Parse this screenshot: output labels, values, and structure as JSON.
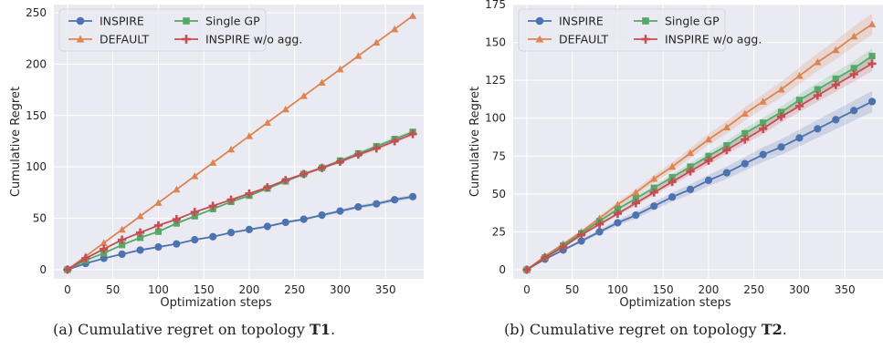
{
  "chart_data": [
    {
      "type": "line",
      "caption_prefix": "(a) Cumulative regret on topology ",
      "caption_bold": "T1",
      "caption_suffix": ".",
      "xlabel": "Optimization steps",
      "ylabel": "Cumulative Regret",
      "xlim": [
        -15,
        392
      ],
      "ylim": [
        -9,
        258
      ],
      "xticks": [
        0,
        50,
        100,
        150,
        200,
        250,
        300,
        350
      ],
      "yticks": [
        0,
        50,
        100,
        150,
        200,
        250
      ],
      "grid": true,
      "legend": "top-left, 2 columns",
      "x": [
        0,
        20,
        40,
        60,
        80,
        100,
        120,
        140,
        160,
        180,
        200,
        220,
        240,
        260,
        280,
        300,
        320,
        340,
        360,
        380
      ],
      "series": [
        {
          "name": "INSPIRE",
          "color": "#4C72B0",
          "marker": "circle",
          "band": 2,
          "values": [
            0,
            6,
            11,
            15,
            19,
            22,
            25,
            29,
            32,
            36,
            39,
            42,
            46,
            49,
            53,
            57,
            61,
            64,
            68,
            71
          ]
        },
        {
          "name": "DEFAULT",
          "color": "#DD8452",
          "marker": "triangle",
          "band": 0,
          "values": [
            0,
            13,
            26,
            39,
            52,
            65,
            78,
            91,
            104,
            117,
            130,
            143,
            156,
            169,
            182,
            195,
            208,
            221,
            234,
            247
          ]
        },
        {
          "name": "Single GP",
          "color": "#55A868",
          "marker": "square",
          "band": 2,
          "values": [
            0,
            9,
            16,
            24,
            31,
            37,
            45,
            52,
            59,
            66,
            72,
            79,
            86,
            93,
            99,
            106,
            113,
            120,
            127,
            134
          ]
        },
        {
          "name": "INSPIRE w/o agg.",
          "color": "#C44E52",
          "marker": "plus",
          "band": 2,
          "values": [
            0,
            11,
            20,
            29,
            36,
            43,
            49,
            56,
            62,
            68,
            74,
            80,
            87,
            93,
            99,
            105,
            112,
            118,
            125,
            132
          ]
        }
      ]
    },
    {
      "type": "line",
      "caption_prefix": "(b) Cumulative regret on topology ",
      "caption_bold": "T2",
      "caption_suffix": ".",
      "xlabel": "Optimization steps",
      "ylabel": "Cumulative Regret",
      "xlim": [
        -15,
        392
      ],
      "ylim": [
        -6,
        175
      ],
      "xticks": [
        0,
        50,
        100,
        150,
        200,
        250,
        300,
        350
      ],
      "yticks": [
        0,
        25,
        50,
        75,
        100,
        125,
        150,
        175
      ],
      "grid": true,
      "legend": "top-left, 2 columns",
      "x": [
        0,
        20,
        40,
        60,
        80,
        100,
        120,
        140,
        160,
        180,
        200,
        220,
        240,
        260,
        280,
        300,
        320,
        340,
        360,
        380
      ],
      "series": [
        {
          "name": "INSPIRE",
          "color": "#4C72B0",
          "marker": "circle",
          "band": 7,
          "values": [
            0,
            7,
            13,
            19,
            25,
            31,
            36,
            42,
            48,
            53,
            59,
            64,
            70,
            76,
            81,
            87,
            93,
            99,
            105,
            111
          ]
        },
        {
          "name": "DEFAULT",
          "color": "#DD8452",
          "marker": "triangle",
          "band": 7,
          "values": [
            0,
            9,
            17,
            25,
            34,
            43,
            51,
            60,
            68,
            77,
            86,
            94,
            103,
            111,
            119,
            128,
            137,
            145,
            154,
            162
          ]
        },
        {
          "name": "Single GP",
          "color": "#55A868",
          "marker": "square",
          "band": 5,
          "values": [
            0,
            8,
            16,
            24,
            32,
            40,
            47,
            54,
            61,
            68,
            75,
            82,
            90,
            97,
            104,
            112,
            119,
            126,
            133,
            141
          ]
        },
        {
          "name": "INSPIRE w/o agg.",
          "color": "#C44E52",
          "marker": "plus",
          "band": 5,
          "values": [
            0,
            8,
            15,
            23,
            30,
            37,
            44,
            51,
            58,
            65,
            72,
            79,
            86,
            93,
            101,
            108,
            115,
            122,
            129,
            136
          ]
        }
      ]
    }
  ]
}
